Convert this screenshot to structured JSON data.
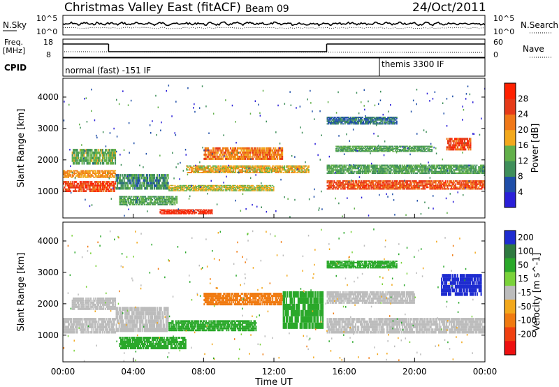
{
  "header": {
    "title": "Christmas Valley East (fitACF)",
    "beam": "Beam 09",
    "date": "24/Oct/2011"
  },
  "strip_nsky": {
    "left_label": "N.Sky",
    "right_label": "N.Search",
    "ticks_left": [
      "10^5",
      "10^0"
    ],
    "ticks_right": [
      "10^5",
      "10^0"
    ]
  },
  "strip_freq": {
    "left_label_top": "Freq.",
    "left_label_bottom": "[MHz]",
    "right_label": "Nave",
    "ticks_left": [
      "18",
      "8"
    ],
    "ticks_right": [
      "60",
      "0"
    ],
    "freq_segments": [
      {
        "start_h": 0,
        "end_h": 2.6,
        "level": "high"
      },
      {
        "start_h": 2.6,
        "end_h": 15.0,
        "level": "low"
      },
      {
        "start_h": 15.0,
        "end_h": 24.0,
        "level": "high"
      }
    ]
  },
  "strip_cpid": {
    "left_label": "CPID",
    "modes": [
      {
        "label": "normal (fast) -151 IF",
        "start_h": 0,
        "end_h": 18
      },
      {
        "label": "themis 3300 IF",
        "start_h": 18,
        "end_h": 24
      }
    ]
  },
  "colors": {
    "power_scale": [
      "#2a1fd8",
      "#1f4ea8",
      "#3f8f5a",
      "#62b04a",
      "#f2a81c",
      "#f07818",
      "#e63a18",
      "#ff2000"
    ],
    "velocity_scale": [
      "#1e2cd0",
      "#2e7a40",
      "#2aa82a",
      "#7ad23a",
      "#bcbcbc",
      "#f2a81c",
      "#f07a10",
      "#f04010",
      "#ee1010"
    ]
  },
  "chart_data": [
    {
      "type": "heatmap",
      "panel": "power",
      "ylabel": "Slant Range [km]",
      "yticks": [
        "1000",
        "2000",
        "3000",
        "4000"
      ],
      "ylim": [
        150,
        4600
      ],
      "xlim": [
        0,
        24
      ],
      "colorbar_label": "Power [dB]",
      "colorbar_ticks": [
        "4",
        "8",
        "12",
        "16",
        "20",
        "24",
        "28"
      ],
      "colorbar_range": [
        0,
        30
      ],
      "bands": [
        {
          "start_h": 0,
          "end_h": 3.0,
          "range_center": 1150,
          "range_width": 350,
          "value": 26
        },
        {
          "start_h": 0,
          "end_h": 3.0,
          "range_center": 1550,
          "range_width": 250,
          "value": 20
        },
        {
          "start_h": 0.5,
          "end_h": 3.0,
          "range_center": 2100,
          "range_width": 500,
          "value": 13
        },
        {
          "start_h": 3.0,
          "end_h": 6.0,
          "range_center": 1300,
          "range_width": 500,
          "value": 10
        },
        {
          "start_h": 3.2,
          "end_h": 6.5,
          "range_center": 700,
          "range_width": 300,
          "value": 12
        },
        {
          "start_h": 5.5,
          "end_h": 8.5,
          "range_center": 350,
          "range_width": 150,
          "value": 28
        },
        {
          "start_h": 8.0,
          "end_h": 12.5,
          "range_center": 2200,
          "range_width": 400,
          "value": 22
        },
        {
          "start_h": 7.0,
          "end_h": 14.0,
          "range_center": 1700,
          "range_width": 250,
          "value": 18
        },
        {
          "start_h": 6.0,
          "end_h": 12.0,
          "range_center": 1100,
          "range_width": 200,
          "value": 16
        },
        {
          "start_h": 15.0,
          "end_h": 24.0,
          "range_center": 1200,
          "range_width": 300,
          "value": 25
        },
        {
          "start_h": 15.0,
          "end_h": 24.0,
          "range_center": 1700,
          "range_width": 300,
          "value": 12
        },
        {
          "start_h": 15.0,
          "end_h": 19.0,
          "range_center": 3250,
          "range_width": 250,
          "value": 8
        },
        {
          "start_h": 15.5,
          "end_h": 21.0,
          "range_center": 2350,
          "range_width": 200,
          "value": 12
        },
        {
          "start_h": 21.8,
          "end_h": 23.2,
          "range_center": 2500,
          "range_width": 400,
          "value": 26
        }
      ]
    },
    {
      "type": "heatmap",
      "panel": "velocity",
      "ylabel": "Slant Range [km]",
      "yticks": [
        "1000",
        "2000",
        "3000",
        "4000"
      ],
      "ylim": [
        150,
        4600
      ],
      "xlim": [
        0,
        24
      ],
      "xlabel": "Time UT",
      "xticks": [
        "00:00",
        "04:00",
        "08:00",
        "12:00",
        "16:00",
        "20:00",
        "00:00"
      ],
      "colorbar_label": "Velocity [m s^-1]",
      "colorbar_ticks": [
        "200",
        "100",
        "50",
        "15",
        "-15",
        "-50",
        "-100",
        "-200"
      ],
      "bands": [
        {
          "start_h": 0,
          "end_h": 3.0,
          "range_center": 1300,
          "range_width": 500,
          "value": 0
        },
        {
          "start_h": 0.5,
          "end_h": 3.0,
          "range_center": 2000,
          "range_width": 400,
          "value": 0
        },
        {
          "start_h": 3.0,
          "end_h": 6.0,
          "range_center": 1500,
          "range_width": 800,
          "value": 0
        },
        {
          "start_h": 3.2,
          "end_h": 7.0,
          "range_center": 750,
          "range_width": 400,
          "value": 40
        },
        {
          "start_h": 6.0,
          "end_h": 11.0,
          "range_center": 1300,
          "range_width": 350,
          "value": 40
        },
        {
          "start_h": 8.0,
          "end_h": 12.5,
          "range_center": 2150,
          "range_width": 400,
          "value": -70
        },
        {
          "start_h": 12.5,
          "end_h": 14.8,
          "range_center": 1800,
          "range_width": 1200,
          "value": 40
        },
        {
          "start_h": 15.0,
          "end_h": 24.0,
          "range_center": 1300,
          "range_width": 500,
          "value": 0
        },
        {
          "start_h": 15.0,
          "end_h": 20.0,
          "range_center": 2200,
          "range_width": 400,
          "value": 0
        },
        {
          "start_h": 15.0,
          "end_h": 19.0,
          "range_center": 3250,
          "range_width": 250,
          "value": 40
        },
        {
          "start_h": 21.5,
          "end_h": 23.8,
          "range_center": 2600,
          "range_width": 700,
          "value": 180
        }
      ]
    }
  ]
}
